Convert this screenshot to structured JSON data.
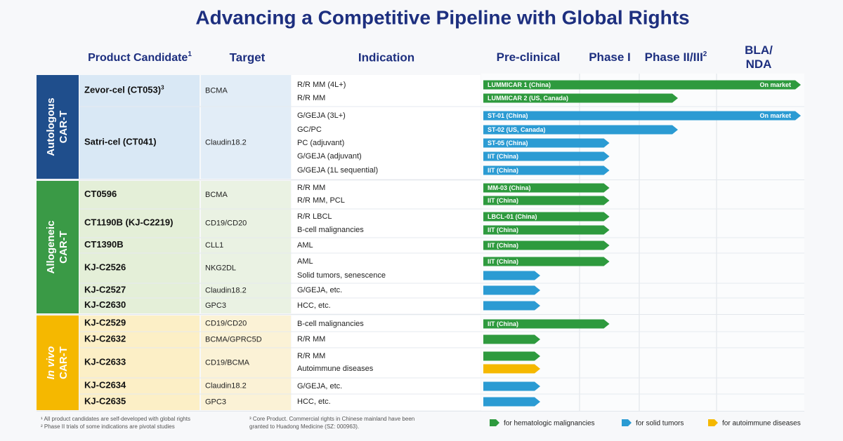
{
  "title": "Advancing a Competitive Pipeline with Global Rights",
  "headers": {
    "candidate": "Product Candidate",
    "candidate_note": "1",
    "target": "Target",
    "indication": "Indication",
    "phases": [
      {
        "lines": [
          "Pre-clinical"
        ]
      },
      {
        "lines": [
          "Phase I"
        ]
      },
      {
        "lines": [
          "Phase II/III"
        ],
        "note": "2"
      },
      {
        "lines": [
          "BLA/",
          "NDA"
        ]
      }
    ]
  },
  "groups": [
    {
      "lines": [
        "Autologous",
        "CAR-T"
      ],
      "color": "#1f4e8c",
      "background": "#d9e8f5",
      "rows": [
        {
          "candidate": "Zevor-cel (CT053)",
          "note": "3",
          "target": "BCMA",
          "indications": [
            {
              "name": "R/R MM (4L+)",
              "bar": {
                "label": "LUMMICAR 1 (China)",
                "status": "On market",
                "progress": 4,
                "color": "#2e9a3e"
              }
            },
            {
              "name": "R/R MM",
              "bar": {
                "label": "LUMMICAR 2 (US, Canada)",
                "progress": 2.5,
                "color": "#2e9a3e"
              }
            }
          ]
        },
        {
          "candidate": "Satri-cel (CT041)",
          "target": "Claudin18.2",
          "indications": [
            {
              "name": "G/GEJA (3L+)",
              "bar": {
                "label": "ST-01 (China)",
                "status": "On market",
                "progress": 4,
                "color": "#2b9bd3"
              }
            },
            {
              "name": "GC/PC",
              "bar": {
                "label": "ST-02 (US, Canada)",
                "progress": 2.5,
                "color": "#2b9bd3"
              }
            },
            {
              "name": "PC (adjuvant)",
              "bar": {
                "label": "ST-05 (China)",
                "progress": 1.5,
                "color": "#2b9bd3"
              }
            },
            {
              "name": "G/GEJA (adjuvant)",
              "bar": {
                "label": "IIT (China)",
                "progress": 1.5,
                "color": "#2b9bd3"
              }
            },
            {
              "name": "G/GEJA (1L sequential)",
              "bar": {
                "label": "IIT (China)",
                "progress": 1.5,
                "color": "#2b9bd3"
              }
            }
          ]
        }
      ]
    },
    {
      "lines": [
        "Allogeneic",
        "CAR-T"
      ],
      "color": "#3a9a46",
      "background": "#e4efd8",
      "rows": [
        {
          "candidate": "CT0596",
          "target": "BCMA",
          "indications": [
            {
              "name": "R/R MM",
              "bar": {
                "label": "MM-03 (China)",
                "progress": 1.5,
                "color": "#2e9a3e"
              }
            },
            {
              "name": "R/R MM, PCL",
              "bar": {
                "label": "IIT (China)",
                "progress": 1.5,
                "color": "#2e9a3e"
              }
            }
          ]
        },
        {
          "candidate": "CT1190B (KJ-C2219)",
          "target": "CD19/CD20",
          "indications": [
            {
              "name": "R/R LBCL",
              "bar": {
                "label": "LBCL-01 (China)",
                "progress": 1.5,
                "color": "#2e9a3e"
              }
            },
            {
              "name": "B-cell malignancies",
              "bar": {
                "label": "IIT (China)",
                "progress": 1.5,
                "color": "#2e9a3e"
              }
            }
          ]
        },
        {
          "candidate": "CT1390B",
          "target": "CLL1",
          "indications": [
            {
              "name": "AML",
              "bar": {
                "label": "IIT (China)",
                "progress": 1.5,
                "color": "#2e9a3e"
              }
            }
          ]
        },
        {
          "candidate": "KJ-C2526",
          "target": "NKG2DL",
          "indications": [
            {
              "name": "AML",
              "bar": {
                "label": "IIT (China)",
                "progress": 1.5,
                "color": "#2e9a3e"
              }
            },
            {
              "name": "Solid tumors, senescence",
              "bar": {
                "progress": 0.6,
                "color": "#2b9bd3"
              }
            }
          ]
        },
        {
          "candidate": "KJ-C2527",
          "target": "Claudin18.2",
          "indications": [
            {
              "name": "G/GEJA, etc.",
              "bar": {
                "progress": 0.6,
                "color": "#2b9bd3"
              }
            }
          ]
        },
        {
          "candidate": "KJ-C2630",
          "target": "GPC3",
          "indications": [
            {
              "name": "HCC, etc.",
              "bar": {
                "progress": 0.6,
                "color": "#2b9bd3"
              }
            }
          ]
        }
      ]
    },
    {
      "lines": [
        "In vivo",
        "CAR-T"
      ],
      "color": "#f5b800",
      "background": "#fcefc6",
      "rows": [
        {
          "candidate": "KJ-C2529",
          "target": "CD19/CD20",
          "indications": [
            {
              "name": "B-cell malignancies",
              "bar": {
                "label": "IIT (China)",
                "progress": 1.5,
                "color": "#2e9a3e"
              }
            }
          ]
        },
        {
          "candidate": "KJ-C2632",
          "target": "BCMA/GPRC5D",
          "indications": [
            {
              "name": "R/R MM",
              "bar": {
                "progress": 0.6,
                "color": "#2e9a3e"
              }
            }
          ]
        },
        {
          "candidate": "KJ-C2633",
          "target": "CD19/BCMA",
          "indications": [
            {
              "name": "R/R MM",
              "bar": {
                "progress": 0.6,
                "color": "#2e9a3e"
              }
            },
            {
              "name": "Autoimmune diseases",
              "bar": {
                "progress": 0.6,
                "color": "#f5b800"
              }
            }
          ]
        },
        {
          "candidate": "KJ-C2634",
          "target": "Claudin18.2",
          "indications": [
            {
              "name": "G/GEJA, etc.",
              "bar": {
                "progress": 0.6,
                "color": "#2b9bd3"
              }
            }
          ]
        },
        {
          "candidate": "KJ-C2635",
          "target": "GPC3",
          "indications": [
            {
              "name": "HCC, etc.",
              "bar": {
                "progress": 0.6,
                "color": "#2b9bd3"
              }
            }
          ]
        }
      ]
    }
  ],
  "footnotes": [
    [
      "¹ All product candidates are self-developed with global rights",
      "² Phase II trials of some indications are pivotal studies"
    ],
    [
      "³ Core Product. Commercial rights in Chinese mainland have been",
      "granted to Huadong Medicine (SZ: 000963)."
    ]
  ],
  "legend": [
    {
      "label": "for hematologic malignancies",
      "color": "#2e9a3e"
    },
    {
      "label": "for solid tumors",
      "color": "#2b9bd3"
    },
    {
      "label": "for autoimmune diseases",
      "color": "#f5b800"
    }
  ]
}
